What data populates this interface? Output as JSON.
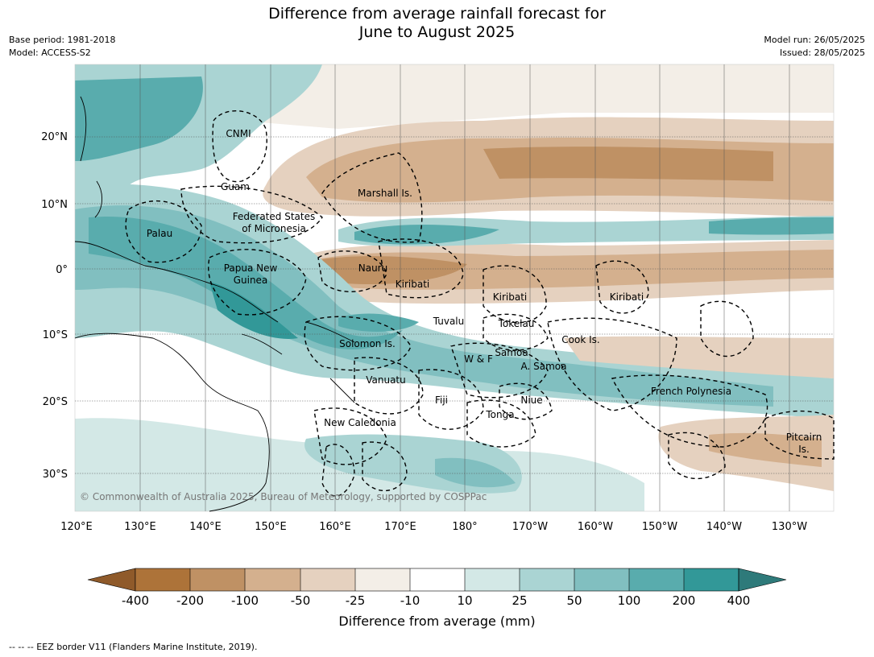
{
  "title_line1": "Difference from average rainfall forecast for",
  "title_line2": "June to August 2025",
  "meta_left": [
    "Base period: 1981-2018",
    "Model: ACCESS-S2"
  ],
  "meta_right": [
    "Model run: 26/05/2025",
    "Issued: 28/05/2025"
  ],
  "lon_labels": [
    "120°E",
    "130°E",
    "140°E",
    "150°E",
    "160°E",
    "170°E",
    "180°",
    "170°W",
    "160°W",
    "150°W",
    "140°W",
    "130°W"
  ],
  "lat_labels": [
    "20°N",
    "10°N",
    "0°",
    "10°S",
    "20°S",
    "30°S"
  ],
  "regions": [
    "CNMI",
    "Guam",
    "Marshall Is.",
    "Federated States",
    "of Micronesia",
    "Palau",
    "Papua New",
    "Guinea",
    "Nauru",
    "Kiribati",
    "Kiribati",
    "Kiribati",
    "Tuvalu",
    "Tokelau",
    "Cook Is.",
    "Solomon Is.",
    "W & F",
    "Samoa",
    "A. Samoa",
    "Vanuatu",
    "Fiji",
    "Niue",
    "French Polynesia",
    "Tonga",
    "New Caledonia",
    "Pitcairn",
    "Is."
  ],
  "copyright": "© Commonwealth of Australia 2025, Bureau of Meteorology, supported by COSPPac",
  "colorbar": {
    "title": "Difference from average (mm)",
    "ticks": [
      "-400",
      "-200",
      "-100",
      "-50",
      "-25",
      "-10",
      "10",
      "25",
      "50",
      "100",
      "200",
      "400"
    ],
    "colors": [
      "#8f5a2a",
      "#ad7339",
      "#bf9164",
      "#d4b08e",
      "#e5d1bf",
      "#f3eee7",
      "#ffffff",
      "#d3e8e6",
      "#aad4d3",
      "#81bfc0",
      "#59acad",
      "#329898",
      "#2e7a7a"
    ]
  },
  "footer": "--  --  -- EEZ border V11 (Flanders Marine Institute, 2019)."
}
